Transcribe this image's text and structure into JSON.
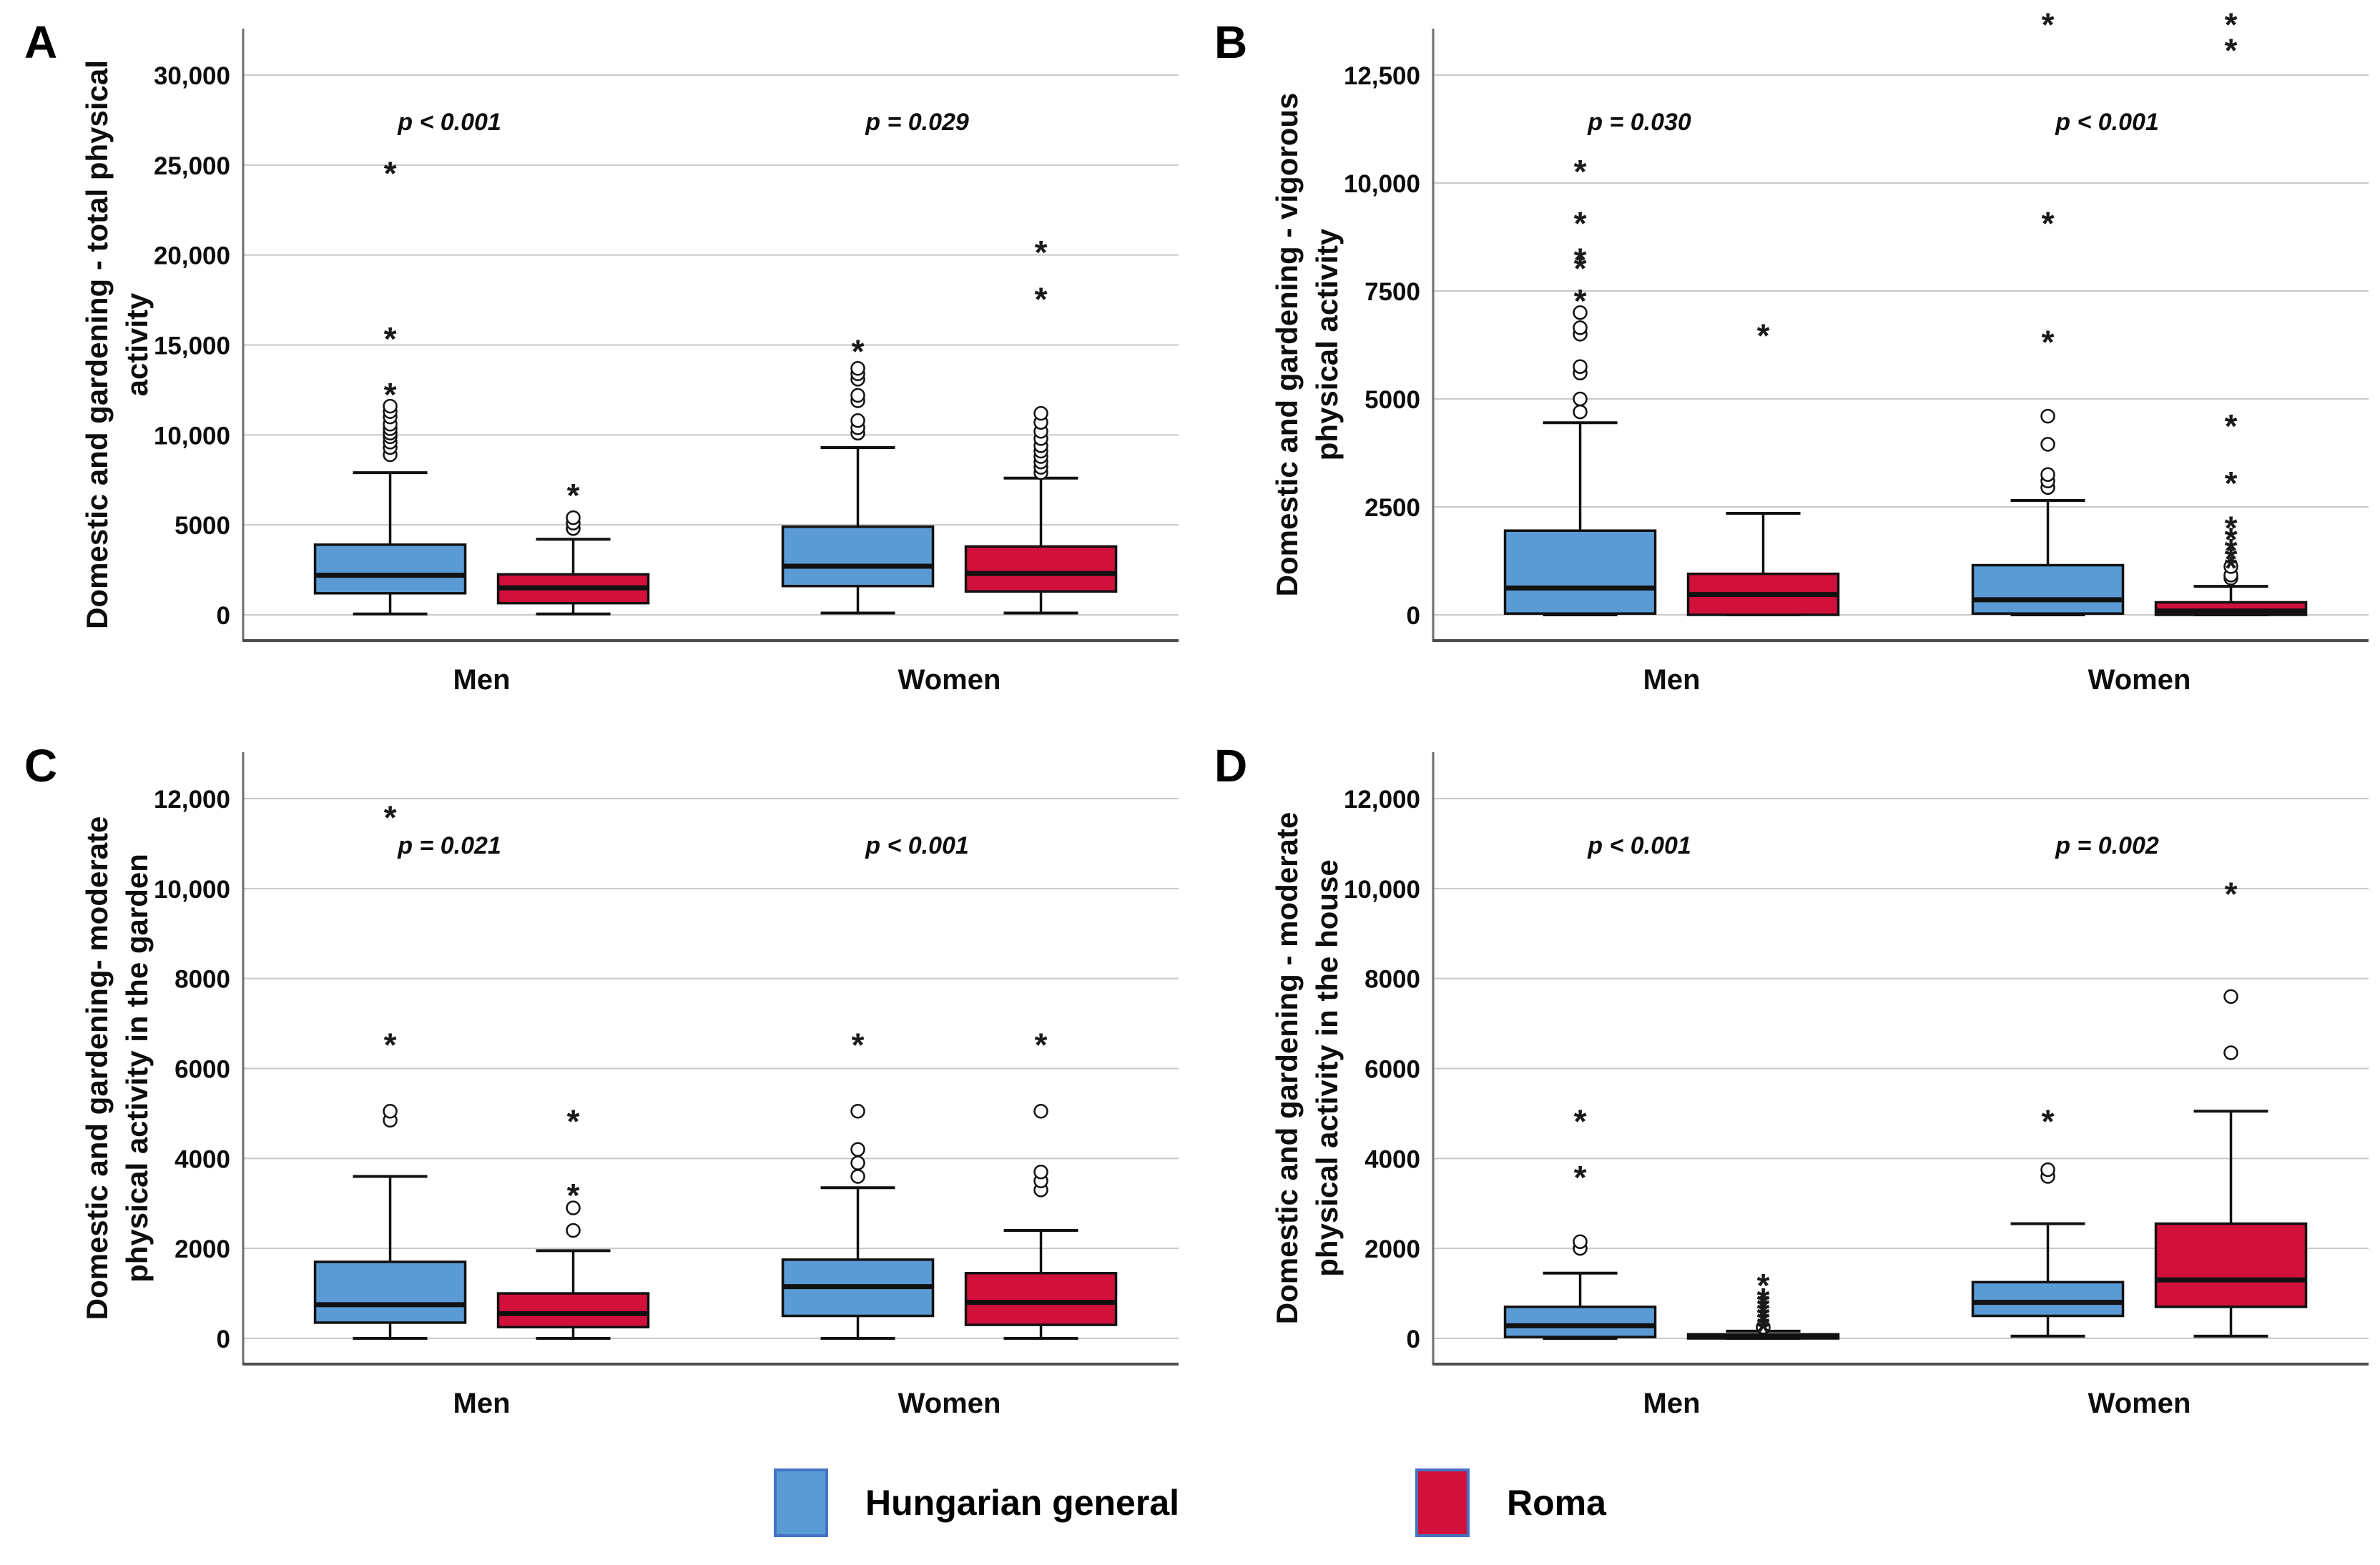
{
  "colors": {
    "hungarian": "#5b9bd5",
    "roma": "#d2103c",
    "gridline": "#c8c8c8",
    "axis": "#6e6e6e",
    "box_stroke": "#111111"
  },
  "legend": {
    "items": [
      {
        "series": "hungarian",
        "label": "Hungarian general"
      },
      {
        "series": "roma",
        "label": "Roma"
      }
    ]
  },
  "chart_data": [
    {
      "id": "A",
      "type": "box",
      "ylabel_lines": [
        "Domestic and gardening - total physical",
        "activity"
      ],
      "yticks": [
        {
          "v": 0,
          "label": "0"
        },
        {
          "v": 5000,
          "label": "5000"
        },
        {
          "v": 10000,
          "label": "10,000"
        },
        {
          "v": 15000,
          "label": "15,000"
        },
        {
          "v": 20000,
          "label": "20,000"
        },
        {
          "v": 25000,
          "label": "25,000"
        },
        {
          "v": 30000,
          "label": "30,000"
        }
      ],
      "groups": [
        {
          "label": "Men",
          "p_label": "p < 0.001",
          "boxes": [
            {
              "series": "hungarian",
              "low": 50,
              "q1": 1200,
              "median": 2200,
              "q3": 3900,
              "high": 7900,
              "circles": [
                8900,
                9300,
                9600,
                9900,
                10100,
                10350,
                10600,
                11000,
                11300,
                11600
              ],
              "stars": [
                12800,
                15900,
                25100
              ]
            },
            {
              "series": "roma",
              "low": 50,
              "q1": 650,
              "median": 1500,
              "q3": 2250,
              "high": 4200,
              "circles": [
                4800,
                5100,
                5400
              ],
              "stars": [
                7200
              ]
            }
          ]
        },
        {
          "label": "Women",
          "p_label": "p = 0.029",
          "boxes": [
            {
              "series": "hungarian",
              "low": 100,
              "q1": 1600,
              "median": 2700,
              "q3": 4900,
              "high": 9300,
              "circles": [
                10100,
                10400,
                10800,
                11900,
                12200,
                13100,
                13400,
                13700
              ],
              "stars": [
                15200
              ]
            },
            {
              "series": "roma",
              "low": 100,
              "q1": 1300,
              "median": 2300,
              "q3": 3800,
              "high": 7600,
              "circles": [
                7900,
                8200,
                8500,
                8800,
                9100,
                9400,
                9800,
                10200,
                10700,
                11200
              ],
              "stars": [
                18100,
                20700
              ]
            }
          ]
        }
      ]
    },
    {
      "id": "B",
      "type": "box",
      "ylabel_lines": [
        "Domestic and gardening - vigorous",
        "physical activity"
      ],
      "yticks": [
        {
          "v": 0,
          "label": "0"
        },
        {
          "v": 2500,
          "label": "2500"
        },
        {
          "v": 5000,
          "label": "5000"
        },
        {
          "v": 7500,
          "label": "7500"
        },
        {
          "v": 10000,
          "label": "10,000"
        },
        {
          "v": 12500,
          "label": "12,500"
        }
      ],
      "groups": [
        {
          "label": "Men",
          "p_label": "p = 0.030",
          "boxes": [
            {
              "series": "hungarian",
              "low": 0,
              "q1": 30,
              "median": 620,
              "q3": 1950,
              "high": 4450,
              "circles": [
                4700,
                5000,
                5600,
                5750,
                6500,
                6650,
                7000
              ],
              "stars": [
                7500,
                8250,
                8450,
                9300,
                10500
              ]
            },
            {
              "series": "roma",
              "low": 0,
              "q1": 0,
              "median": 470,
              "q3": 950,
              "high": 2350,
              "circles": [],
              "stars": [
                6700
              ]
            }
          ]
        },
        {
          "label": "Women",
          "p_label": "p < 0.001",
          "boxes": [
            {
              "series": "hungarian",
              "low": 0,
              "q1": 30,
              "median": 350,
              "q3": 1150,
              "high": 2650,
              "circles": [
                2950,
                3100,
                3250,
                3950,
                4600
              ],
              "stars": [
                6550,
                9300,
                13900
              ]
            },
            {
              "series": "roma",
              "low": 0,
              "q1": 0,
              "median": 90,
              "q3": 290,
              "high": 660,
              "circles": [
                850,
                920,
                1120
              ],
              "stars": [
                1320,
                1520,
                1720,
                1980,
                2240,
                3280,
                4600,
                13300,
                13900
              ]
            }
          ]
        }
      ]
    },
    {
      "id": "C",
      "type": "box",
      "ylabel_lines": [
        "Domestic and gardening- moderate",
        "physical activity in the garden"
      ],
      "yticks": [
        {
          "v": 0,
          "label": "0"
        },
        {
          "v": 2000,
          "label": "2000"
        },
        {
          "v": 4000,
          "label": "4000"
        },
        {
          "v": 6000,
          "label": "6000"
        },
        {
          "v": 8000,
          "label": "8000"
        },
        {
          "v": 10000,
          "label": "10,000"
        },
        {
          "v": 12000,
          "label": "12,000"
        }
      ],
      "groups": [
        {
          "label": "Men",
          "p_label": "p = 0.021",
          "boxes": [
            {
              "series": "hungarian",
              "low": 0,
              "q1": 350,
              "median": 750,
              "q3": 1700,
              "high": 3600,
              "circles": [
                4850,
                5050
              ],
              "stars": [
                6750,
                11800
              ]
            },
            {
              "series": "roma",
              "low": 0,
              "q1": 250,
              "median": 550,
              "q3": 1000,
              "high": 1950,
              "circles": [
                2400,
                2900
              ],
              "stars": [
                3400,
                5050
              ]
            }
          ]
        },
        {
          "label": "Women",
          "p_label": "p < 0.001",
          "boxes": [
            {
              "series": "hungarian",
              "low": 0,
              "q1": 500,
              "median": 1150,
              "q3": 1750,
              "high": 3350,
              "circles": [
                3600,
                3900,
                4200,
                5050
              ],
              "stars": [
                6750
              ]
            },
            {
              "series": "roma",
              "low": 0,
              "q1": 300,
              "median": 800,
              "q3": 1450,
              "high": 2400,
              "circles": [
                3300,
                3500,
                3700,
                5050
              ],
              "stars": [
                6750
              ]
            }
          ]
        }
      ]
    },
    {
      "id": "D",
      "type": "box",
      "ylabel_lines": [
        "Domestic and gardening - moderate",
        "physical activity in the house"
      ],
      "yticks": [
        {
          "v": 0,
          "label": "0"
        },
        {
          "v": 2000,
          "label": "2000"
        },
        {
          "v": 4000,
          "label": "4000"
        },
        {
          "v": 6000,
          "label": "6000"
        },
        {
          "v": 8000,
          "label": "8000"
        },
        {
          "v": 10000,
          "label": "10,000"
        },
        {
          "v": 12000,
          "label": "12,000"
        }
      ],
      "groups": [
        {
          "label": "Men",
          "p_label": "p < 0.001",
          "boxes": [
            {
              "series": "hungarian",
              "low": 0,
              "q1": 30,
              "median": 280,
              "q3": 700,
              "high": 1450,
              "circles": [
                2000,
                2150
              ],
              "stars": [
                3800,
                5050
              ]
            },
            {
              "series": "roma",
              "low": 0,
              "q1": 0,
              "median": 30,
              "q3": 90,
              "high": 160,
              "circles": [
                250
              ],
              "stars": [
                380,
                480,
                580,
                680,
                780,
                880,
                980,
                1080,
                1400
              ]
            }
          ]
        },
        {
          "label": "Women",
          "p_label": "p = 0.002",
          "boxes": [
            {
              "series": "hungarian",
              "low": 50,
              "q1": 500,
              "median": 800,
              "q3": 1250,
              "high": 2550,
              "circles": [
                3600,
                3750
              ],
              "stars": [
                5050
              ]
            },
            {
              "series": "roma",
              "low": 50,
              "q1": 700,
              "median": 1300,
              "q3": 2550,
              "high": 5050,
              "circles": [
                6350,
                7600
              ],
              "stars": [
                10100
              ]
            }
          ]
        }
      ]
    }
  ]
}
